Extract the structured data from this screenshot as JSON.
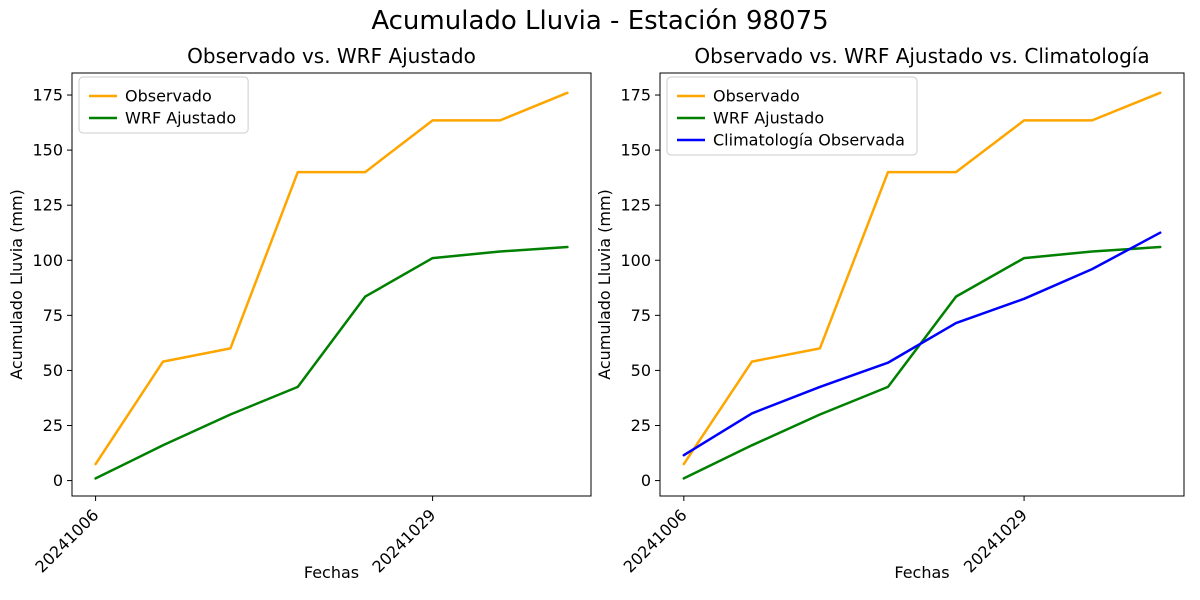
{
  "figure": {
    "suptitle": "Acumulado Lluvia - Estación 98075",
    "background_color": "#ffffff"
  },
  "chart_data": [
    {
      "id": "left",
      "type": "line",
      "title": "Observado vs. WRF Ajustado",
      "xlabel": "Fechas",
      "ylabel": "Acumulado Lluvia (mm)",
      "x": [
        0,
        1,
        2,
        3,
        4,
        5,
        6,
        7
      ],
      "xticks": [
        {
          "pos": 0,
          "label": "20241006"
        },
        {
          "pos": 5,
          "label": "20241029"
        }
      ],
      "yticks": [
        0,
        25,
        50,
        75,
        100,
        125,
        150,
        175
      ],
      "xlim": [
        -0.35,
        7.35
      ],
      "ylim": [
        -7,
        185
      ],
      "grid": false,
      "legend_position": "upper left",
      "series": [
        {
          "name": "Observado",
          "color": "#FFA500",
          "values": [
            7.5,
            54,
            60,
            140,
            140,
            163.5,
            163.5,
            176
          ]
        },
        {
          "name": "WRF Ajustado",
          "color": "#008000",
          "values": [
            1,
            16,
            30,
            42.5,
            83.5,
            101,
            104,
            106
          ]
        }
      ]
    },
    {
      "id": "right",
      "type": "line",
      "title": "Observado vs. WRF Ajustado vs. Climatología",
      "xlabel": "Fechas",
      "ylabel": "Acumulado Lluvia (mm)",
      "x": [
        0,
        1,
        2,
        3,
        4,
        5,
        6,
        7
      ],
      "xticks": [
        {
          "pos": 0,
          "label": "20241006"
        },
        {
          "pos": 5,
          "label": "20241029"
        }
      ],
      "yticks": [
        0,
        25,
        50,
        75,
        100,
        125,
        150,
        175
      ],
      "xlim": [
        -0.35,
        7.35
      ],
      "ylim": [
        -7,
        185
      ],
      "grid": false,
      "legend_position": "upper left",
      "series": [
        {
          "name": "Observado",
          "color": "#FFA500",
          "values": [
            7.5,
            54,
            60,
            140,
            140,
            163.5,
            163.5,
            176
          ]
        },
        {
          "name": "WRF Ajustado",
          "color": "#008000",
          "values": [
            1,
            16,
            30,
            42.5,
            83.5,
            101,
            104,
            106
          ]
        },
        {
          "name": "Climatología Observada",
          "color": "#0000FF",
          "values": [
            11.5,
            30.5,
            42.5,
            53.5,
            71.5,
            82.5,
            96,
            112.5
          ]
        }
      ]
    }
  ]
}
